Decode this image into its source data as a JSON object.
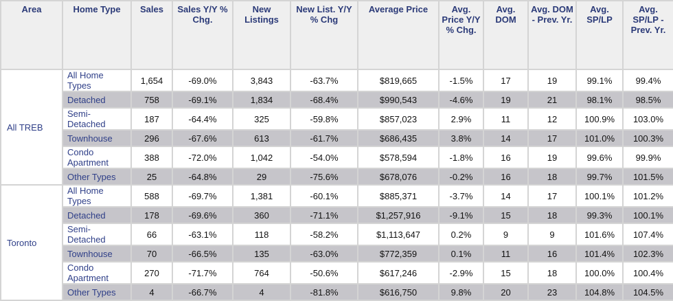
{
  "headers": [
    "Area",
    "Home Type",
    "Sales",
    "Sales Y/Y % Chg.",
    "New Listings",
    "New List. Y/Y % Chg",
    "Average Price",
    "Avg. Price Y/Y % Chg.",
    "Avg. DOM",
    "Avg. DOM - Prev. Yr.",
    "Avg. SP/LP",
    "Avg. SP/LP - Prev. Yr."
  ],
  "groups": [
    {
      "area": "All TREB",
      "rows": [
        {
          "type": "All Home Types",
          "values": [
            "1,654",
            "-69.0%",
            "3,843",
            "-63.7%",
            "$819,665",
            "-1.5%",
            "17",
            "19",
            "99.1%",
            "99.4%"
          ]
        },
        {
          "type": "Detached",
          "values": [
            "758",
            "-69.1%",
            "1,834",
            "-68.4%",
            "$990,543",
            "-4.6%",
            "19",
            "21",
            "98.1%",
            "98.5%"
          ]
        },
        {
          "type": "Semi-Detached",
          "values": [
            "187",
            "-64.4%",
            "325",
            "-59.8%",
            "$857,023",
            "2.9%",
            "11",
            "12",
            "100.9%",
            "103.0%"
          ]
        },
        {
          "type": "Townhouse",
          "values": [
            "296",
            "-67.6%",
            "613",
            "-61.7%",
            "$686,435",
            "3.8%",
            "14",
            "17",
            "101.0%",
            "100.3%"
          ]
        },
        {
          "type": "Condo Apartment",
          "values": [
            "388",
            "-72.0%",
            "1,042",
            "-54.0%",
            "$578,594",
            "-1.8%",
            "16",
            "19",
            "99.6%",
            "99.9%"
          ]
        },
        {
          "type": "Other Types",
          "values": [
            "25",
            "-64.8%",
            "29",
            "-75.6%",
            "$678,076",
            "-0.2%",
            "16",
            "18",
            "99.7%",
            "101.5%"
          ]
        }
      ]
    },
    {
      "area": "Toronto",
      "rows": [
        {
          "type": "All Home Types",
          "values": [
            "588",
            "-69.7%",
            "1,381",
            "-60.1%",
            "$885,371",
            "-3.7%",
            "14",
            "17",
            "100.1%",
            "101.2%"
          ]
        },
        {
          "type": "Detached",
          "values": [
            "178",
            "-69.6%",
            "360",
            "-71.1%",
            "$1,257,916",
            "-9.1%",
            "15",
            "18",
            "99.3%",
            "100.1%"
          ]
        },
        {
          "type": "Semi-Detached",
          "values": [
            "66",
            "-63.1%",
            "118",
            "-58.2%",
            "$1,113,647",
            "0.2%",
            "9",
            "9",
            "101.6%",
            "107.4%"
          ]
        },
        {
          "type": "Townhouse",
          "values": [
            "70",
            "-66.5%",
            "135",
            "-63.0%",
            "$772,359",
            "0.1%",
            "11",
            "16",
            "101.4%",
            "102.3%"
          ]
        },
        {
          "type": "Condo Apartment",
          "values": [
            "270",
            "-71.7%",
            "764",
            "-50.6%",
            "$617,246",
            "-2.9%",
            "15",
            "18",
            "100.0%",
            "100.4%"
          ]
        },
        {
          "type": "Other Types",
          "values": [
            "4",
            "-66.7%",
            "4",
            "-81.8%",
            "$616,750",
            "9.8%",
            "20",
            "23",
            "104.8%",
            "104.5%"
          ]
        }
      ]
    }
  ],
  "colors": {
    "header_bg": "#efefef",
    "header_text": "#2b3a78",
    "alt_row": "#c6c5ca",
    "label_text": "#2f3f88"
  }
}
